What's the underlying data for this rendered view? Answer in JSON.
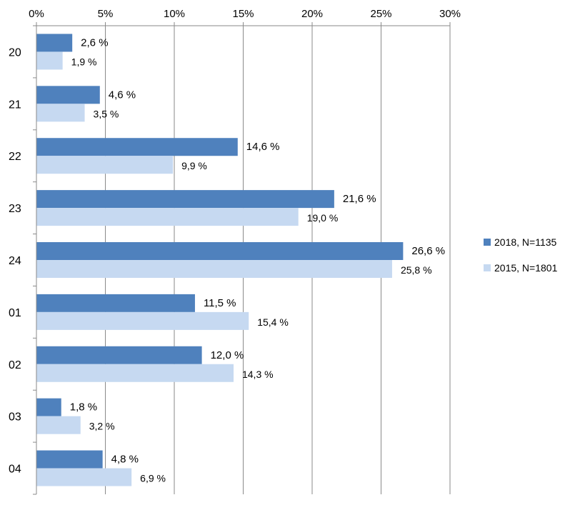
{
  "chart_data": {
    "type": "bar",
    "orientation": "horizontal",
    "categories": [
      "20",
      "21",
      "22",
      "23",
      "24",
      "01",
      "02",
      "03",
      "04"
    ],
    "series": [
      {
        "name": "2018, N=1135",
        "color": "#4F81BD",
        "values": [
          2.6,
          4.6,
          14.6,
          21.6,
          26.6,
          11.5,
          12.0,
          1.8,
          4.8
        ],
        "labels": [
          "2,6 %",
          "4,6 %",
          "14,6 %",
          "21,6 %",
          "26,6 %",
          "11,5 %",
          "12,0 %",
          "1,8 %",
          "4,8 %"
        ]
      },
      {
        "name": "2015, N=1801",
        "color": "#C6D9F1",
        "values": [
          1.9,
          3.5,
          9.9,
          19.0,
          25.8,
          15.4,
          14.3,
          3.2,
          6.9
        ],
        "labels": [
          "1,9 %",
          "3,5 %",
          "9,9 %",
          "19,0 %",
          "25,8 %",
          "15,4 %",
          "14,3 %",
          "3,2 %",
          "6,9 %"
        ]
      }
    ],
    "x_ticks": [
      "0%",
      "5%",
      "10%",
      "15%",
      "20%",
      "25%",
      "30%"
    ],
    "xlim": [
      0,
      30
    ],
    "x_axis_position": "top",
    "grid": true,
    "legend_position": "right",
    "title": "",
    "xlabel": "",
    "ylabel": ""
  }
}
